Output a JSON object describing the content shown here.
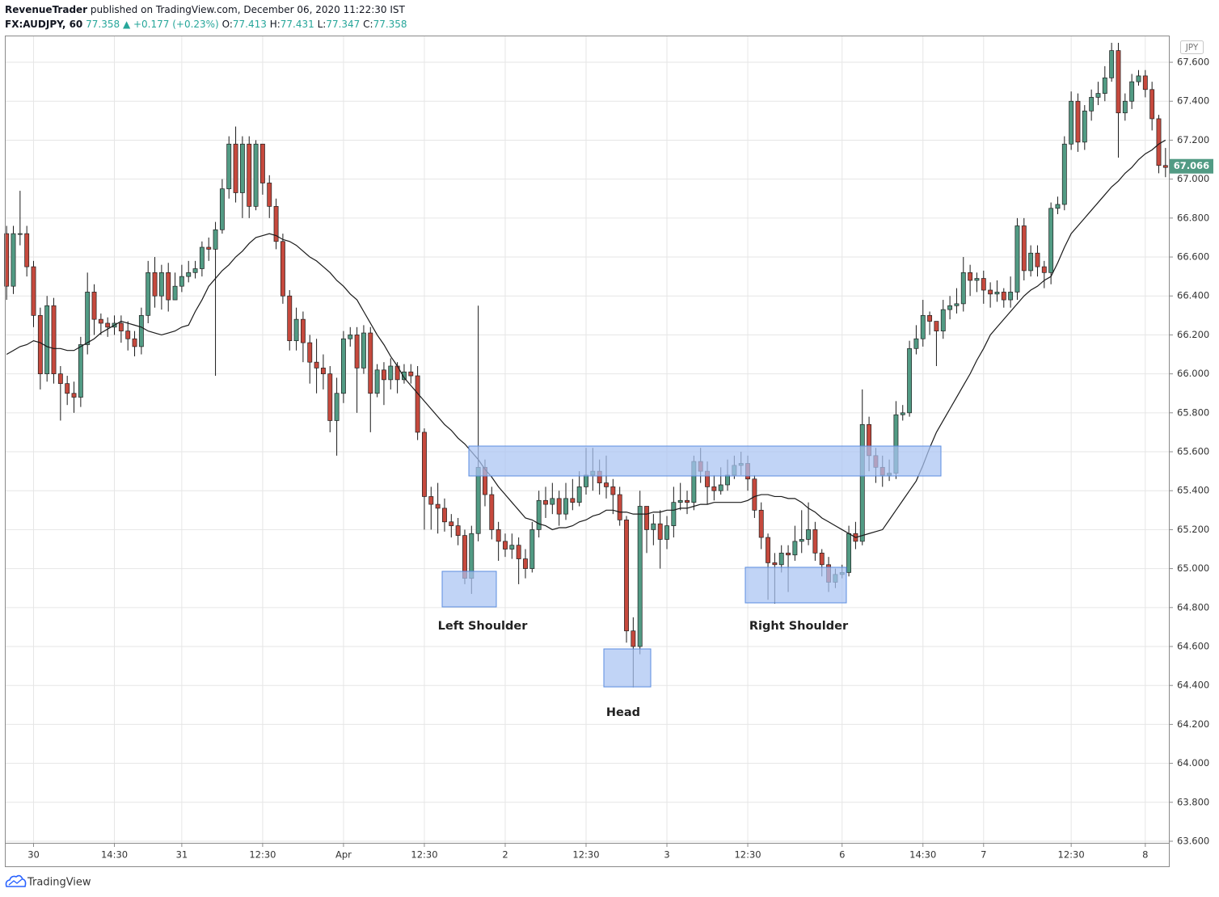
{
  "header": {
    "author": "RevenueTrader",
    "published": "published on TradingView.com, December 06, 2020 11:22:30 IST",
    "symbol": "FX:AUDJPY, 60",
    "price": "77.358",
    "change": "▲ +0.177 (+0.23%)",
    "ohlc": [
      {
        "label": "O:",
        "value": "77.413"
      },
      {
        "label": "H:",
        "value": "77.431"
      },
      {
        "label": "L:",
        "value": "77.347"
      },
      {
        "label": "C:",
        "value": "77.358"
      }
    ]
  },
  "footer": {
    "brand": "TradingView"
  },
  "chart_data": {
    "type": "candlestick",
    "currency": "JPY",
    "last_price": 67.066,
    "up_color": "#529b84",
    "down_color": "#c6493d",
    "ma_color": "#1a1a1a",
    "grid": true,
    "annotations": [
      "Left Shoulder",
      "Head",
      "Right Shoulder"
    ],
    "ylim": [
      63.6,
      67.733
    ],
    "yticks": [
      {
        "value": 63.6,
        "label": "63.600"
      },
      {
        "value": 63.8,
        "label": "63.800"
      },
      {
        "value": 64.0,
        "label": "64.000"
      },
      {
        "value": 64.2,
        "label": "64.200"
      },
      {
        "value": 64.4,
        "label": "64.400"
      },
      {
        "value": 64.6,
        "label": "64.600"
      },
      {
        "value": 64.8,
        "label": "64.800"
      },
      {
        "value": 65.0,
        "label": "65.000"
      },
      {
        "value": 65.2,
        "label": "65.200"
      },
      {
        "value": 65.4,
        "label": "65.400"
      },
      {
        "value": 65.6,
        "label": "65.600"
      },
      {
        "value": 65.8,
        "label": "65.800"
      },
      {
        "value": 66.0,
        "label": "66.000"
      },
      {
        "value": 66.2,
        "label": "66.200"
      },
      {
        "value": 66.4,
        "label": "66.400"
      },
      {
        "value": 66.6,
        "label": "66.600"
      },
      {
        "value": 66.8,
        "label": "66.800"
      },
      {
        "value": 67.0,
        "label": "67.000"
      },
      {
        "value": 67.2,
        "label": "67.200"
      },
      {
        "value": 67.4,
        "label": "67.400"
      },
      {
        "value": 67.6,
        "label": "67.600"
      }
    ],
    "categories": [
      null,
      null,
      null,
      null,
      "30",
      null,
      null,
      null,
      null,
      null,
      null,
      null,
      null,
      null,
      null,
      null,
      "14:30",
      null,
      null,
      null,
      null,
      null,
      null,
      null,
      null,
      null,
      "31",
      null,
      null,
      null,
      null,
      null,
      null,
      null,
      null,
      null,
      null,
      null,
      "12:30",
      null,
      null,
      null,
      null,
      null,
      null,
      null,
      null,
      null,
      null,
      null,
      "Apr",
      null,
      null,
      null,
      null,
      null,
      null,
      null,
      null,
      null,
      null,
      null,
      "12:30",
      null,
      null,
      null,
      null,
      null,
      null,
      null,
      null,
      null,
      null,
      null,
      "2",
      null,
      null,
      null,
      null,
      null,
      null,
      null,
      null,
      null,
      null,
      null,
      "12:30",
      null,
      null,
      null,
      null,
      null,
      null,
      null,
      null,
      null,
      null,
      null,
      "3",
      null,
      null,
      null,
      null,
      null,
      null,
      null,
      null,
      null,
      null,
      null,
      "12:30",
      null,
      null,
      null,
      null,
      null,
      null,
      null,
      null,
      null,
      null,
      null,
      null,
      null,
      "6",
      null,
      null,
      null,
      null,
      null,
      null,
      null,
      null,
      null,
      null,
      null,
      "14:30",
      null,
      null,
      null,
      null,
      null,
      null,
      null,
      null,
      "7",
      null,
      null,
      null,
      null,
      null,
      null,
      null,
      null,
      null,
      null,
      null,
      null,
      "12:30",
      null,
      null,
      null,
      null,
      null,
      null,
      null,
      null,
      null,
      null,
      "8",
      null,
      null,
      null
    ],
    "open": [
      66.72,
      66.45,
      66.72,
      66.72,
      66.55,
      66.3,
      66.0,
      66.35,
      66.0,
      65.95,
      65.9,
      65.88,
      66.15,
      66.42,
      66.28,
      66.26,
      66.24,
      66.26,
      66.22,
      66.18,
      66.14,
      66.3,
      66.52,
      66.4,
      66.52,
      66.38,
      66.45,
      66.5,
      66.52,
      66.54,
      66.65,
      66.64,
      66.74,
      66.95,
      67.18,
      66.93,
      67.18,
      66.86,
      67.18,
      66.98,
      66.86,
      66.68,
      66.4,
      66.17,
      66.28,
      66.16,
      66.06,
      66.03,
      66.0,
      65.76,
      65.9,
      66.18,
      66.2,
      66.03,
      66.21,
      65.9,
      66.02,
      65.97,
      66.04,
      65.97,
      66.01,
      65.99,
      65.7,
      65.37,
      65.33,
      65.31,
      65.24,
      65.22,
      65.17,
      64.95,
      65.18,
      65.52,
      65.38,
      65.2,
      65.14,
      65.1,
      65.12,
      65.05,
      65.0,
      65.2,
      65.35,
      65.33,
      65.36,
      65.28,
      65.36,
      65.34,
      65.42,
      65.48,
      65.5,
      65.44,
      65.42,
      65.38,
      65.25,
      64.68,
      64.6,
      65.32,
      65.2,
      65.23,
      65.15,
      65.22,
      65.34,
      65.35,
      65.34,
      65.55,
      65.5,
      65.42,
      65.4,
      65.43,
      65.48,
      65.53,
      65.54,
      65.46,
      65.3,
      65.16,
      65.03,
      65.02,
      65.08,
      65.07,
      65.14,
      65.15,
      65.2,
      65.08,
      65.02,
      64.93,
      64.97,
      64.98,
      65.18,
      65.14,
      65.74,
      65.58,
      65.52,
      65.48,
      65.49,
      65.79,
      65.8,
      66.13,
      66.18,
      66.3,
      66.27,
      66.22,
      66.33,
      66.35,
      66.36,
      66.52,
      66.48,
      66.49,
      66.43,
      66.41,
      66.42,
      66.38,
      66.42,
      66.76,
      66.53,
      66.62,
      66.55,
      66.52,
      66.85,
      66.87,
      67.18,
      67.4,
      67.19,
      67.35,
      67.42,
      67.44,
      67.52,
      67.66,
      67.34,
      67.4,
      67.5,
      67.53,
      67.46,
      67.31,
      67.07
    ],
    "high": [
      66.76,
      66.76,
      66.94,
      66.76,
      66.58,
      66.34,
      66.4,
      66.39,
      66.04,
      65.99,
      65.96,
      66.19,
      66.52,
      66.46,
      66.31,
      66.29,
      66.3,
      66.3,
      66.27,
      66.22,
      66.34,
      66.58,
      66.6,
      66.56,
      66.57,
      66.52,
      66.56,
      66.58,
      66.58,
      66.68,
      66.7,
      66.78,
      67.0,
      67.22,
      67.27,
      67.22,
      67.22,
      67.2,
      67.18,
      67.02,
      66.9,
      66.72,
      66.43,
      66.34,
      66.32,
      66.2,
      66.18,
      66.1,
      66.04,
      65.98,
      66.22,
      66.24,
      66.24,
      66.25,
      66.24,
      66.05,
      66.06,
      66.08,
      66.06,
      66.05,
      66.05,
      66.04,
      65.72,
      65.42,
      65.44,
      65.36,
      65.28,
      65.26,
      65.2,
      65.22,
      66.35,
      65.56,
      65.42,
      65.24,
      65.18,
      65.18,
      65.16,
      65.1,
      65.24,
      65.4,
      65.42,
      65.44,
      65.4,
      65.44,
      65.46,
      65.5,
      65.62,
      65.62,
      65.56,
      65.58,
      65.46,
      65.42,
      65.27,
      64.75,
      65.4,
      65.3,
      65.28,
      65.3,
      65.27,
      65.42,
      65.44,
      65.4,
      65.58,
      65.62,
      65.55,
      65.48,
      65.52,
      65.56,
      65.58,
      65.6,
      65.58,
      65.48,
      65.34,
      65.18,
      65.08,
      65.12,
      65.12,
      65.22,
      65.3,
      65.34,
      65.24,
      65.1,
      65.06,
      65.0,
      65.02,
      65.22,
      65.24,
      65.92,
      65.78,
      65.62,
      65.58,
      65.56,
      65.86,
      65.84,
      66.17,
      66.25,
      66.38,
      66.32,
      66.26,
      66.38,
      66.4,
      66.44,
      66.6,
      66.56,
      66.52,
      66.53,
      66.47,
      66.48,
      66.44,
      66.5,
      66.8,
      66.8,
      66.66,
      66.66,
      66.58,
      66.88,
      66.91,
      67.22,
      67.45,
      67.44,
      67.38,
      67.46,
      67.5,
      67.58,
      67.7,
      67.7,
      67.44,
      67.54,
      67.56,
      67.56,
      67.5,
      67.33,
      67.16
    ],
    "low": [
      66.38,
      66.41,
      66.66,
      66.5,
      66.24,
      65.92,
      65.96,
      65.95,
      65.76,
      65.84,
      65.8,
      65.83,
      66.1,
      66.2,
      66.2,
      66.19,
      66.2,
      66.16,
      66.12,
      66.09,
      66.1,
      66.26,
      66.34,
      66.33,
      66.32,
      66.38,
      66.42,
      66.47,
      66.49,
      66.5,
      66.58,
      65.99,
      66.72,
      66.9,
      66.88,
      66.8,
      66.8,
      66.84,
      66.92,
      66.8,
      66.64,
      66.36,
      66.12,
      66.12,
      66.06,
      65.95,
      65.9,
      65.92,
      65.7,
      65.58,
      65.85,
      66.14,
      65.8,
      66.0,
      65.7,
      65.88,
      65.84,
      65.92,
      65.9,
      65.95,
      65.95,
      65.66,
      65.2,
      65.2,
      65.18,
      65.19,
      65.16,
      65.12,
      64.92,
      64.87,
      65.14,
      65.32,
      65.15,
      65.04,
      65.06,
      65.05,
      64.92,
      64.95,
      64.98,
      65.16,
      65.26,
      65.28,
      65.22,
      65.25,
      65.3,
      65.32,
      65.38,
      65.4,
      65.38,
      65.36,
      65.28,
      65.22,
      64.62,
      64.39,
      64.56,
      65.08,
      65.12,
      65.0,
      65.1,
      65.16,
      65.3,
      65.28,
      65.3,
      65.44,
      65.33,
      65.35,
      65.38,
      65.4,
      65.46,
      65.48,
      65.4,
      65.26,
      65.1,
      64.84,
      64.82,
      64.98,
      64.88,
      65.04,
      65.08,
      65.12,
      65.04,
      64.96,
      64.88,
      64.9,
      64.95,
      64.96,
      65.1,
      65.12,
      65.5,
      65.44,
      65.42,
      65.45,
      65.46,
      65.76,
      65.78,
      66.1,
      66.14,
      66.2,
      66.04,
      66.18,
      66.28,
      66.31,
      66.32,
      66.4,
      66.42,
      66.36,
      66.34,
      66.37,
      66.34,
      66.34,
      66.38,
      66.48,
      66.5,
      66.5,
      66.44,
      66.46,
      66.82,
      66.84,
      67.15,
      67.14,
      67.15,
      67.3,
      67.38,
      67.4,
      67.5,
      67.11,
      67.3,
      67.36,
      67.48,
      67.42,
      67.25,
      67.03,
      67.01
    ],
    "close": [
      66.45,
      66.72,
      66.72,
      66.55,
      66.3,
      66.0,
      66.35,
      66.0,
      65.95,
      65.9,
      65.88,
      66.15,
      66.42,
      66.28,
      66.26,
      66.24,
      66.26,
      66.22,
      66.18,
      66.14,
      66.3,
      66.52,
      66.4,
      66.52,
      66.38,
      66.45,
      66.5,
      66.52,
      66.54,
      66.65,
      66.64,
      66.74,
      66.95,
      67.18,
      66.93,
      67.18,
      66.86,
      67.18,
      66.98,
      66.86,
      66.68,
      66.4,
      66.17,
      66.28,
      66.16,
      66.06,
      66.03,
      66.0,
      65.76,
      65.9,
      66.18,
      66.2,
      66.03,
      66.21,
      65.9,
      66.02,
      65.97,
      66.04,
      65.97,
      66.01,
      65.99,
      65.7,
      65.37,
      65.33,
      65.31,
      65.24,
      65.22,
      65.17,
      64.95,
      65.18,
      65.52,
      65.38,
      65.2,
      65.14,
      65.1,
      65.12,
      65.05,
      65.0,
      65.2,
      65.35,
      65.33,
      65.36,
      65.28,
      65.36,
      65.34,
      65.42,
      65.48,
      65.5,
      65.44,
      65.42,
      65.38,
      65.25,
      64.68,
      64.6,
      65.32,
      65.2,
      65.23,
      65.15,
      65.22,
      65.34,
      65.35,
      65.34,
      65.55,
      65.5,
      65.42,
      65.4,
      65.43,
      65.48,
      65.53,
      65.54,
      65.46,
      65.3,
      65.16,
      65.03,
      65.02,
      65.08,
      65.07,
      65.14,
      65.15,
      65.2,
      65.08,
      65.02,
      64.93,
      64.97,
      64.98,
      65.18,
      65.14,
      65.74,
      65.58,
      65.52,
      65.48,
      65.49,
      65.79,
      65.8,
      66.13,
      66.18,
      66.3,
      66.27,
      66.22,
      66.33,
      66.35,
      66.36,
      66.52,
      66.48,
      66.49,
      66.43,
      66.41,
      66.42,
      66.38,
      66.42,
      66.76,
      66.53,
      66.62,
      66.55,
      66.52,
      66.85,
      66.87,
      67.18,
      67.4,
      67.19,
      67.35,
      67.42,
      67.44,
      67.52,
      67.66,
      67.34,
      67.4,
      67.5,
      67.53,
      67.46,
      67.31,
      67.07,
      67.06
    ],
    "moving_average": [
      66.1,
      66.12,
      66.14,
      66.15,
      66.17,
      66.16,
      66.14,
      66.13,
      66.13,
      66.12,
      66.12,
      66.14,
      66.16,
      66.18,
      66.21,
      66.23,
      66.25,
      66.27,
      66.26,
      66.25,
      66.24,
      66.22,
      66.21,
      66.2,
      66.21,
      66.22,
      66.24,
      66.25,
      66.32,
      66.38,
      66.45,
      66.49,
      66.53,
      66.56,
      66.6,
      66.63,
      66.67,
      66.7,
      66.71,
      66.72,
      66.71,
      66.69,
      66.68,
      66.66,
      66.63,
      66.6,
      66.58,
      66.55,
      66.52,
      66.48,
      66.45,
      66.41,
      66.38,
      66.32,
      66.26,
      66.2,
      66.15,
      66.09,
      66.04,
      65.98,
      65.94,
      65.9,
      65.86,
      65.82,
      65.78,
      65.74,
      65.71,
      65.67,
      65.64,
      65.6,
      65.56,
      65.51,
      65.47,
      65.42,
      65.38,
      65.34,
      65.3,
      65.26,
      65.25,
      65.23,
      65.22,
      65.2,
      65.21,
      65.21,
      65.22,
      65.24,
      65.25,
      65.27,
      65.28,
      65.3,
      65.3,
      65.29,
      65.29,
      65.28,
      65.28,
      65.28,
      65.29,
      65.29,
      65.3,
      65.3,
      65.31,
      65.31,
      65.32,
      65.33,
      65.33,
      65.34,
      65.34,
      65.34,
      65.34,
      65.34,
      65.35,
      65.37,
      65.38,
      65.38,
      65.37,
      65.37,
      65.36,
      65.36,
      65.34,
      65.31,
      65.29,
      65.26,
      65.24,
      65.22,
      65.2,
      65.18,
      65.16,
      65.17,
      65.18,
      65.19,
      65.2,
      65.25,
      65.3,
      65.35,
      65.4,
      65.45,
      65.53,
      65.62,
      65.7,
      65.76,
      65.82,
      65.88,
      65.94,
      66.0,
      66.07,
      66.13,
      66.2,
      66.24,
      66.28,
      66.32,
      66.36,
      66.4,
      66.43,
      66.45,
      66.48,
      66.5,
      66.57,
      66.65,
      66.72,
      66.76,
      66.8,
      66.84,
      66.88,
      66.92,
      66.96,
      66.99,
      67.03,
      67.06,
      67.1,
      67.13,
      67.15,
      67.18,
      67.2
    ]
  }
}
